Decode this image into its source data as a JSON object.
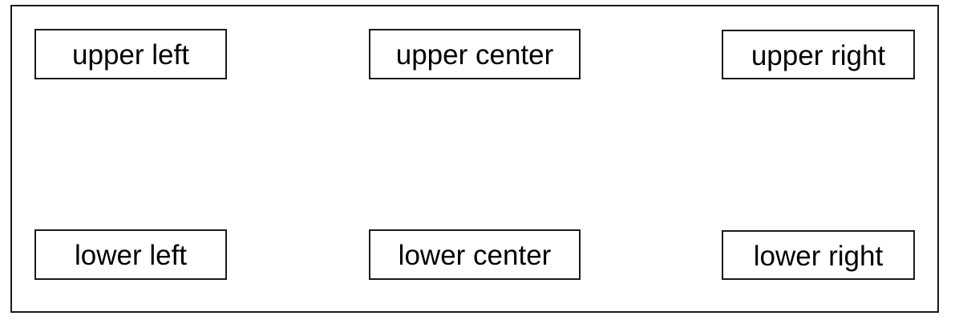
{
  "boxes": {
    "upper_left": "upper left",
    "upper_center": "upper center",
    "upper_right": "upper right",
    "lower_left": "lower left",
    "lower_center": "lower center",
    "lower_right": "lower right"
  }
}
